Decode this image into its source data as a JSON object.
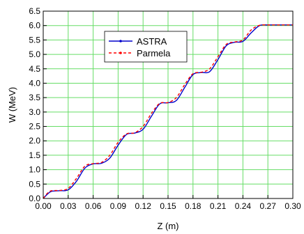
{
  "chart_data": {
    "type": "line",
    "title": "",
    "xlabel": "Z (m)",
    "ylabel": "W (MeV)",
    "xlim": [
      0,
      0.3
    ],
    "ylim": [
      0,
      6.5
    ],
    "xticks": [
      "0.00",
      "0.03",
      "0.06",
      "0.09",
      "0.12",
      "0.15",
      "0.18",
      "0.21",
      "0.24",
      "0.27",
      "0.30"
    ],
    "yticks": [
      "0.0",
      "0.5",
      "1.0",
      "1.5",
      "2.0",
      "2.5",
      "3.0",
      "3.5",
      "4.0",
      "4.5",
      "5.0",
      "5.5",
      "6.0",
      "6.5"
    ],
    "grid": true,
    "legend_position": "upper-left-inside",
    "series": [
      {
        "name": "ASTRA",
        "color": "#0000cc",
        "style": "solid",
        "x": [
          0,
          0.005,
          0.01,
          0.02,
          0.03,
          0.04,
          0.05,
          0.06,
          0.07,
          0.08,
          0.09,
          0.1,
          0.11,
          0.12,
          0.13,
          0.14,
          0.15,
          0.16,
          0.17,
          0.18,
          0.19,
          0.2,
          0.21,
          0.22,
          0.23,
          0.24,
          0.25,
          0.26,
          0.27,
          0.28,
          0.29,
          0.3
        ],
        "y": [
          0.0,
          0.15,
          0.25,
          0.27,
          0.3,
          0.6,
          1.05,
          1.2,
          1.22,
          1.4,
          1.85,
          2.22,
          2.27,
          2.4,
          2.85,
          3.28,
          3.32,
          3.4,
          3.85,
          4.3,
          4.37,
          4.4,
          4.82,
          5.3,
          5.42,
          5.45,
          5.75,
          6.0,
          6.02,
          6.02,
          6.02,
          6.02
        ]
      },
      {
        "name": "Parmela",
        "color": "#ff0000",
        "style": "dashed",
        "x": [
          0,
          0.005,
          0.01,
          0.02,
          0.03,
          0.04,
          0.05,
          0.06,
          0.07,
          0.08,
          0.09,
          0.1,
          0.11,
          0.12,
          0.13,
          0.14,
          0.15,
          0.16,
          0.17,
          0.18,
          0.19,
          0.2,
          0.21,
          0.22,
          0.23,
          0.24,
          0.25,
          0.26,
          0.27,
          0.28,
          0.29,
          0.3
        ],
        "y": [
          0.0,
          0.18,
          0.27,
          0.28,
          0.35,
          0.7,
          1.12,
          1.21,
          1.25,
          1.5,
          1.95,
          2.24,
          2.28,
          2.5,
          2.95,
          3.3,
          3.33,
          3.5,
          3.95,
          4.33,
          4.38,
          4.5,
          4.92,
          5.35,
          5.43,
          5.5,
          5.85,
          6.01,
          6.02,
          6.02,
          6.02,
          6.02
        ]
      }
    ]
  }
}
